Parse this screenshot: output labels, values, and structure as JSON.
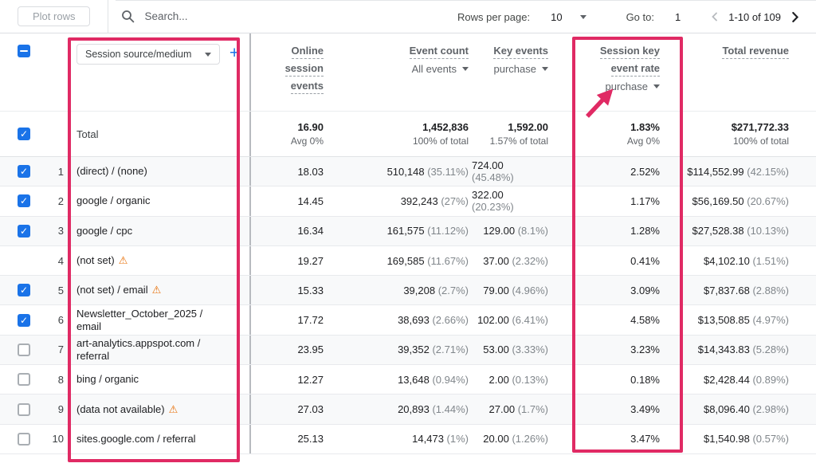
{
  "toolbar": {
    "plot_rows_label": "Plot rows",
    "search_placeholder": "Search...",
    "rows_per_page_label": "Rows per page:",
    "rows_per_page_value": "10",
    "go_to_label": "Go to:",
    "go_to_value": "1",
    "pagination_range": "1-10 of 109"
  },
  "table": {
    "dimension_selector_label": "Session source/medium",
    "add_column_label": "+",
    "headers": {
      "online_lines": [
        "Online",
        "session",
        "events"
      ],
      "event_count_label": "Event count",
      "event_count_filter": "All events",
      "key_events_label": "Key events",
      "key_events_filter": "purchase",
      "rate_lines": [
        "Session key",
        "event rate"
      ],
      "rate_filter": "purchase",
      "total_revenue_label": "Total revenue"
    },
    "total_row": {
      "label": "Total",
      "online": {
        "primary": "16.90",
        "secondary": "Avg 0%"
      },
      "event_count": {
        "primary": "1,452,836",
        "secondary": "100% of total"
      },
      "key_events": {
        "primary": "1,592.00",
        "secondary": "1.57% of total"
      },
      "rate": {
        "primary": "1.83%",
        "secondary": "Avg 0%"
      },
      "revenue": {
        "primary": "$271,772.33",
        "secondary": "100% of total"
      }
    },
    "rows": [
      {
        "num": "1",
        "checkbox": "checked",
        "dimension": "(direct) / (none)",
        "warning": false,
        "online": "18.03",
        "event_count": "510,148",
        "event_count_share": "(35.11%)",
        "key_events": "724.00",
        "key_events_share": "(45.48%)",
        "rate": "2.52%",
        "revenue": "$114,552.99",
        "revenue_share": "(42.15%)"
      },
      {
        "num": "2",
        "checkbox": "checked",
        "dimension": "google / organic",
        "warning": false,
        "online": "14.45",
        "event_count": "392,243",
        "event_count_share": "(27%)",
        "key_events": "322.00",
        "key_events_share": "(20.23%)",
        "rate": "1.17%",
        "revenue": "$56,169.50",
        "revenue_share": "(20.67%)"
      },
      {
        "num": "3",
        "checkbox": "checked",
        "dimension": "google / cpc",
        "warning": false,
        "online": "16.34",
        "event_count": "161,575",
        "event_count_share": "(11.12%)",
        "key_events": "129.00",
        "key_events_share": "(8.1%)",
        "rate": "1.28%",
        "revenue": "$27,528.38",
        "revenue_share": "(10.13%)"
      },
      {
        "num": "4",
        "checkbox": "none",
        "dimension": "(not set)",
        "warning": true,
        "online": "19.27",
        "event_count": "169,585",
        "event_count_share": "(11.67%)",
        "key_events": "37.00",
        "key_events_share": "(2.32%)",
        "rate": "0.41%",
        "revenue": "$4,102.10",
        "revenue_share": "(1.51%)"
      },
      {
        "num": "5",
        "checkbox": "checked",
        "dimension": "(not set) / email",
        "warning": true,
        "online": "15.33",
        "event_count": "39,208",
        "event_count_share": "(2.7%)",
        "key_events": "79.00",
        "key_events_share": "(4.96%)",
        "rate": "3.09%",
        "revenue": "$7,837.68",
        "revenue_share": "(2.88%)"
      },
      {
        "num": "6",
        "checkbox": "checked",
        "dimension": "Newsletter_October_2025 / email",
        "warning": false,
        "online": "17.72",
        "event_count": "38,693",
        "event_count_share": "(2.66%)",
        "key_events": "102.00",
        "key_events_share": "(6.41%)",
        "rate": "4.58%",
        "revenue": "$13,508.85",
        "revenue_share": "(4.97%)"
      },
      {
        "num": "7",
        "checkbox": "unchecked",
        "dimension": "art-analytics.appspot.com / referral",
        "warning": false,
        "online": "23.95",
        "event_count": "39,352",
        "event_count_share": "(2.71%)",
        "key_events": "53.00",
        "key_events_share": "(3.33%)",
        "rate": "3.23%",
        "revenue": "$14,343.83",
        "revenue_share": "(5.28%)"
      },
      {
        "num": "8",
        "checkbox": "unchecked",
        "dimension": "bing / organic",
        "warning": false,
        "online": "12.27",
        "event_count": "13,648",
        "event_count_share": "(0.94%)",
        "key_events": "2.00",
        "key_events_share": "(0.13%)",
        "rate": "0.18%",
        "revenue": "$2,428.44",
        "revenue_share": "(0.89%)"
      },
      {
        "num": "9",
        "checkbox": "unchecked",
        "dimension": "(data not available)",
        "warning": true,
        "online": "27.03",
        "event_count": "20,893",
        "event_count_share": "(1.44%)",
        "key_events": "27.00",
        "key_events_share": "(1.7%)",
        "rate": "3.49%",
        "revenue": "$8,096.40",
        "revenue_share": "(2.98%)"
      },
      {
        "num": "10",
        "checkbox": "unchecked",
        "dimension": "sites.google.com / referral",
        "warning": false,
        "online": "25.13",
        "event_count": "14,473",
        "event_count_share": "(1%)",
        "key_events": "20.00",
        "key_events_share": "(1.26%)",
        "rate": "3.47%",
        "revenue": "$1,540.98",
        "revenue_share": "(0.57%)"
      }
    ]
  },
  "annotation": {
    "highlight_color": "#e02a64",
    "warning_color": "#e8710a",
    "accent_blue": "#1a73e8"
  }
}
